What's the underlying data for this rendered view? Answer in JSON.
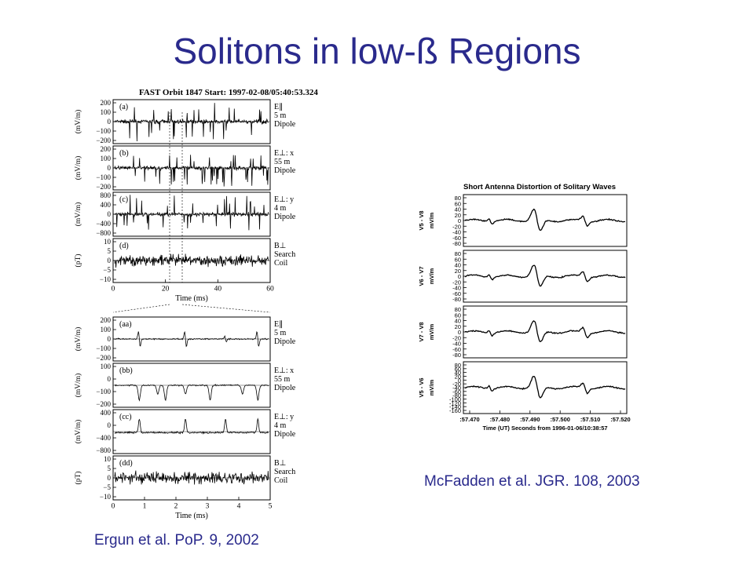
{
  "slide": {
    "title": "Solitons in low-ß Regions",
    "caption_left": "Ergun et al. PoP. 9, 2002",
    "caption_right": "McFadden et al. JGR. 108, 2003"
  },
  "chart_data": [
    {
      "type": "line",
      "title": "FAST Orbit 1847 Start: 1997-02-08/05:40:53.324",
      "xlabel": "Time (ms)",
      "xlim": [
        0,
        60
      ],
      "xticks": [
        "0",
        "20",
        "40",
        "60"
      ],
      "panels": [
        {
          "tag": "(a)",
          "name_lines": [
            "E∥",
            "5 m",
            "Dipole"
          ],
          "ylabel": "(mV/m)",
          "yticks": [
            "200",
            "100",
            "0",
            "−100",
            "−200"
          ]
        },
        {
          "tag": "(b)",
          "name_lines": [
            "E⊥: x",
            "55 m",
            "Dipole"
          ],
          "ylabel": "(mV/m)",
          "yticks": [
            "200",
            "100",
            "0",
            "−100",
            "−200"
          ]
        },
        {
          "tag": "(c)",
          "name_lines": [
            "E⊥: y",
            "4 m",
            "Dipole"
          ],
          "ylabel": "(mV/m)",
          "yticks": [
            "800",
            "400",
            "0",
            "−400",
            "−800"
          ]
        },
        {
          "tag": "(d)",
          "name_lines": [
            "B⊥",
            "Search",
            "Coil"
          ],
          "ylabel": "(pT)",
          "yticks": [
            "10",
            "5",
            "0",
            "−5",
            "−10"
          ]
        }
      ]
    },
    {
      "type": "line",
      "xlabel": "Time (ms)",
      "xlim": [
        0,
        5
      ],
      "xticks": [
        "0",
        "1",
        "2",
        "3",
        "4",
        "5"
      ],
      "panels": [
        {
          "tag": "(aa)",
          "name_lines": [
            "E∥",
            "5 m",
            "Dipole"
          ],
          "ylabel": "(mV/m)",
          "yticks": [
            "200",
            "100",
            "0",
            "−100",
            "−200"
          ]
        },
        {
          "tag": "(bb)",
          "name_lines": [
            "E⊥: x",
            "55 m",
            "Dipole"
          ],
          "ylabel": "(mV/m)",
          "yticks": [
            "100",
            "0",
            "−100",
            "−200"
          ]
        },
        {
          "tag": "(cc)",
          "name_lines": [
            "E⊥: y",
            "4 m",
            "Dipole"
          ],
          "ylabel": "(mV/m)",
          "yticks": [
            "400",
            "0",
            "−400",
            "−800"
          ]
        },
        {
          "tag": "(dd)",
          "name_lines": [
            "B⊥",
            "Search",
            "Coil"
          ],
          "ylabel": "(pT)",
          "yticks": [
            "10",
            "5",
            "0",
            "−5",
            "−10"
          ]
        }
      ]
    },
    {
      "type": "line",
      "title": "Short Antenna Distortion of Solitary Waves",
      "xlabel": "Time (UT) Seconds from 1996-01-06/10:38:57",
      "xticks": [
        ":57.470",
        ":57.480",
        ":57.490",
        ":57.500",
        ":57.510",
        ":57.520"
      ],
      "panels": [
        {
          "name": "V5 - V8",
          "ylabel": "mV/m",
          "yticks": [
            "80",
            "60",
            "40",
            "20",
            "0",
            "-20",
            "-40",
            "-60",
            "-80"
          ]
        },
        {
          "name": "V6 - V7",
          "ylabel": "mV/m",
          "yticks": [
            "80",
            "60",
            "40",
            "20",
            "0",
            "-20",
            "-40",
            "-60",
            "-80"
          ]
        },
        {
          "name": "V7 - V8",
          "ylabel": "mV/m",
          "yticks": [
            "80",
            "60",
            "40",
            "20",
            "0",
            "-20",
            "-40",
            "-60",
            "-80"
          ]
        },
        {
          "name": "V5 - V6",
          "ylabel": "mV/m",
          "yticks": [
            "80",
            "60",
            "40",
            "20",
            "0",
            "-20",
            "-40",
            "-60",
            "-80",
            "-100",
            "-120",
            "-140",
            "-160"
          ]
        }
      ]
    }
  ]
}
